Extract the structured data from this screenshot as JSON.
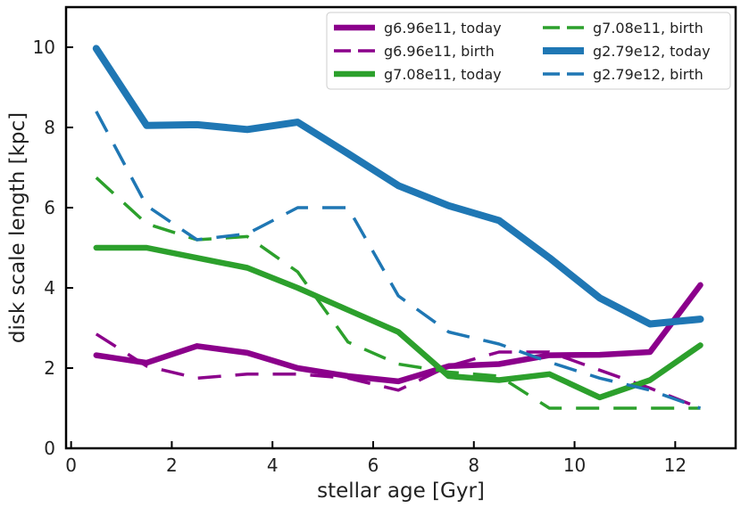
{
  "chart_data": {
    "type": "line",
    "title": "",
    "xlabel": "stellar age [Gyr]",
    "ylabel": "disk scale length [kpc]",
    "xlim": [
      -0.1,
      13.2
    ],
    "ylim": [
      0,
      11
    ],
    "xticks": [
      0,
      2,
      4,
      6,
      8,
      10,
      12
    ],
    "yticks": [
      0,
      2,
      4,
      6,
      8,
      10
    ],
    "x": [
      0.5,
      1.5,
      2.5,
      3.5,
      4.5,
      5.5,
      6.5,
      7.5,
      8.5,
      9.5,
      10.5,
      11.5,
      12.5
    ],
    "legend_position": "top-right",
    "series": [
      {
        "name": "g6.96e11, today",
        "color": "#8b008b",
        "style": "solid",
        "weight": "medium",
        "values": [
          2.32,
          2.13,
          2.55,
          2.38,
          2.0,
          1.8,
          1.67,
          2.05,
          2.1,
          2.32,
          2.33,
          2.4,
          4.07
        ]
      },
      {
        "name": "g6.96e11, birth",
        "color": "#8b008b",
        "style": "dashed",
        "weight": "thin",
        "values": [
          2.85,
          2.05,
          1.75,
          1.85,
          1.85,
          1.75,
          1.45,
          2.05,
          2.4,
          2.4,
          1.95,
          1.5,
          1.0
        ]
      },
      {
        "name": "g7.08e11, today",
        "color": "#2ca02c",
        "style": "solid",
        "weight": "medium",
        "values": [
          5.0,
          5.0,
          4.75,
          4.5,
          4.0,
          3.45,
          2.9,
          1.8,
          1.7,
          1.85,
          1.27,
          1.7,
          2.57
        ]
      },
      {
        "name": "g7.08e11, birth",
        "color": "#2ca02c",
        "style": "dashed",
        "weight": "thin",
        "values": [
          6.75,
          5.6,
          5.2,
          5.28,
          4.4,
          2.65,
          2.1,
          1.9,
          1.8,
          1.0,
          1.0,
          1.0,
          1.0
        ]
      },
      {
        "name": "g2.79e12, today",
        "color": "#1f77b4",
        "style": "solid",
        "weight": "thick",
        "values": [
          9.97,
          8.05,
          8.07,
          7.95,
          8.13,
          7.35,
          6.55,
          6.05,
          5.68,
          4.75,
          3.75,
          3.1,
          3.22
        ]
      },
      {
        "name": "g2.79e12, birth",
        "color": "#1f77b4",
        "style": "dashed",
        "weight": "thin",
        "values": [
          8.4,
          6.05,
          5.2,
          5.35,
          6.0,
          6.0,
          3.8,
          2.9,
          2.6,
          2.15,
          1.75,
          1.45,
          1.0
        ]
      }
    ]
  }
}
